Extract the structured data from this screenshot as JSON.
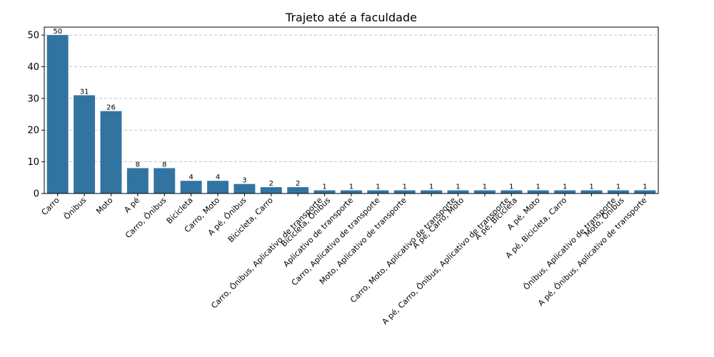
{
  "chart_data": {
    "type": "bar",
    "title": "Trajeto até a faculdade",
    "xlabel": "",
    "ylabel": "",
    "ylim": [
      0,
      52.5
    ],
    "yticks": [
      0,
      10,
      20,
      30,
      40,
      50
    ],
    "grid": "y",
    "bar_color": "#3274a1",
    "categories": [
      "Carro",
      "Ônibus",
      "Moto",
      "A pé",
      "Carro, Ônibus",
      "Bicicleta",
      "Carro, Moto",
      "A pé, Ônibus",
      "Bicicleta, Carro",
      "Carro, Ônibus, Aplicativo de transporte",
      "Bicicleta, Ônibus",
      "Aplicativo de transporte",
      "Carro, Aplicativo de transporte",
      "Moto, Aplicativo de transporte",
      "Carro, Moto, Aplicativo de transporte",
      "A pé, Carro, Moto",
      "A pé, Carro, Ônibus, Aplicativo de transporte",
      "A pé, Bicicleta",
      "A pé, Moto",
      "A pé, Bicicleta, Carro",
      "Ônibus, Aplicativo de transporte",
      "Moto, Ônibus",
      "A pé, Ônibus, Aplicativo de transporte"
    ],
    "label_positions": [
      0,
      1,
      2,
      3,
      4,
      5,
      6,
      7,
      8,
      9.85,
      10.15,
      11,
      12,
      13,
      14.85,
      15.15,
      16.85,
      17.15,
      18,
      19,
      20.85,
      21.15,
      22
    ],
    "values": [
      50,
      31,
      26,
      8,
      8,
      4,
      4,
      3,
      2,
      2,
      1,
      1,
      1,
      1,
      1,
      1,
      1,
      1,
      1,
      1,
      1,
      1,
      1
    ]
  }
}
